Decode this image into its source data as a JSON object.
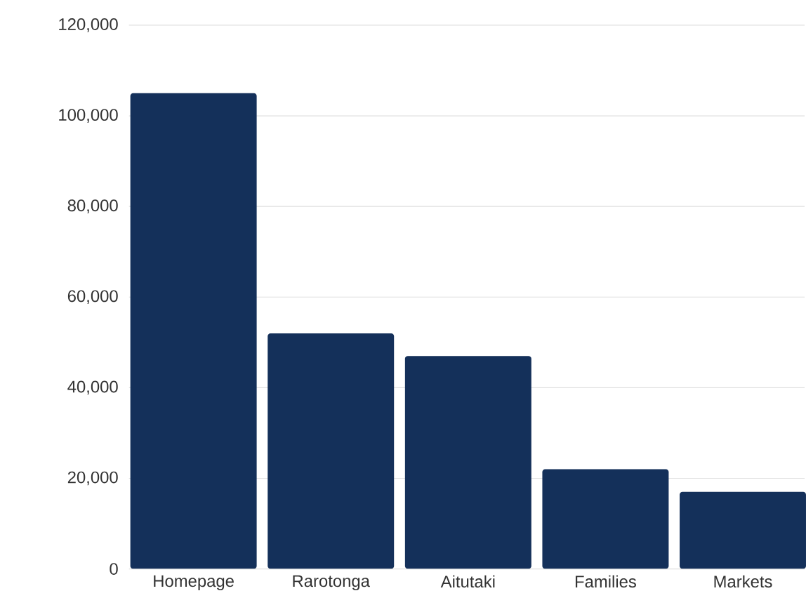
{
  "chart_data": {
    "type": "bar",
    "categories": [
      "Homepage",
      "Rarotonga",
      "Aitutaki",
      "Families",
      "Markets"
    ],
    "values": [
      105000,
      52000,
      47000,
      22000,
      17000
    ],
    "color": "#14305a",
    "ylim": [
      0,
      120000
    ],
    "yticks": [
      0,
      {
        "value": 20000,
        "label": "20,000"
      },
      {
        "value": 40000,
        "label": "40,000"
      },
      {
        "value": 60000,
        "label": "60,000"
      },
      {
        "value": 80000,
        "label": "80,000"
      },
      {
        "value": 100000,
        "label": "100,000"
      },
      {
        "value": 120000,
        "label": "120,000"
      }
    ],
    "grid": "y"
  }
}
